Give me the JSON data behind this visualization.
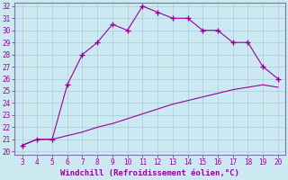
{
  "x_upper": [
    3,
    4,
    5,
    6,
    7,
    8,
    9,
    10,
    11,
    12,
    13,
    14,
    15,
    16,
    17,
    18,
    19,
    20
  ],
  "y_upper": [
    20.5,
    21.0,
    21.0,
    25.5,
    28.0,
    29.0,
    30.5,
    30.0,
    32.0,
    31.5,
    31.0,
    31.0,
    30.0,
    30.0,
    29.0,
    29.0,
    27.0,
    26.0
  ],
  "x_lower": [
    3,
    4,
    5,
    6,
    7,
    8,
    9,
    10,
    11,
    12,
    13,
    14,
    15,
    16,
    17,
    18,
    19,
    20
  ],
  "y_lower": [
    20.5,
    21.0,
    21.0,
    21.3,
    21.6,
    22.0,
    22.3,
    22.7,
    23.1,
    23.5,
    23.9,
    24.2,
    24.5,
    24.8,
    25.1,
    25.3,
    25.5,
    25.3
  ],
  "line_color": "#990099",
  "marker": "+",
  "marker_size": 4,
  "marker_linewidth": 1.0,
  "linewidth": 0.8,
  "bg_color": "#cce8f0",
  "grid_color": "#aaccdd",
  "xlabel": "Windchill (Refroidissement éolien,°C)",
  "xlim": [
    3,
    20
  ],
  "ylim": [
    20,
    32
  ],
  "xticks": [
    3,
    4,
    5,
    6,
    7,
    8,
    9,
    10,
    11,
    12,
    13,
    14,
    15,
    16,
    17,
    18,
    19,
    20
  ],
  "yticks": [
    20,
    21,
    22,
    23,
    24,
    25,
    26,
    27,
    28,
    29,
    30,
    31,
    32
  ],
  "tick_color": "#990099",
  "tick_fontsize": 5.5,
  "xlabel_fontsize": 6.5,
  "xlabel_color": "#990099",
  "axis_linewidth": 0.8,
  "spine_color": "#7777aa"
}
